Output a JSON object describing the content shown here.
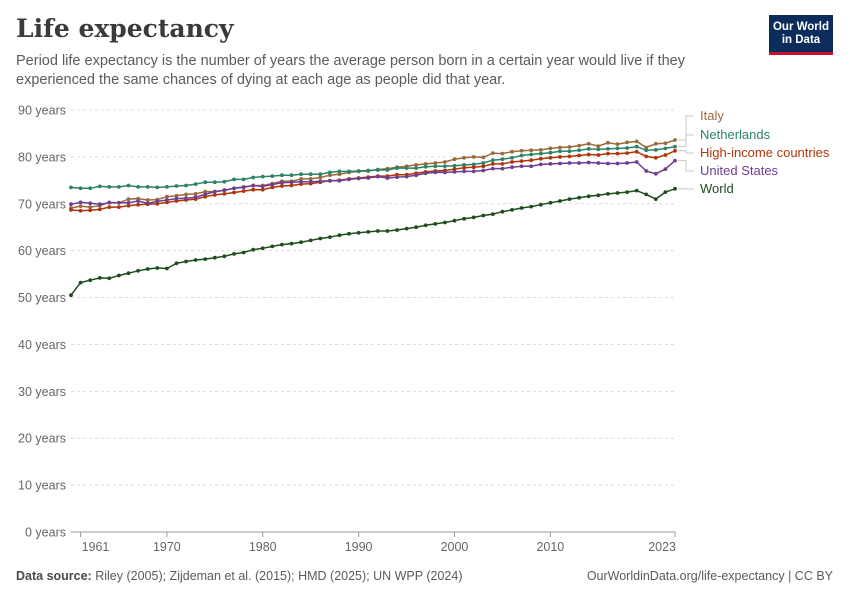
{
  "header": {
    "title": "Life expectancy",
    "subtitle": "Period life expectancy is the number of years the average person born in a certain year would live if they experienced the same chances of dying at each age as people did that year.",
    "logo_line1": "Our World",
    "logo_line2": "in Data"
  },
  "footer": {
    "source_label": "Data source:",
    "source_text": "Riley (2005); Zijdeman et al. (2015); HMD (2025); UN WPP (2024)",
    "link_text": "OurWorldinData.org/life-expectancy",
    "license_text": "| CC BY"
  },
  "chart_data": {
    "type": "line",
    "title": "Life expectancy",
    "xlim": [
      1960,
      2023
    ],
    "ylim": [
      0,
      90
    ],
    "x_ticks": [
      {
        "value": 1961,
        "label": "1961"
      },
      {
        "value": 1970,
        "label": "1970"
      },
      {
        "value": 1980,
        "label": "1980"
      },
      {
        "value": 1990,
        "label": "1990"
      },
      {
        "value": 2000,
        "label": "2000"
      },
      {
        "value": 2010,
        "label": "2010"
      },
      {
        "value": 2023,
        "label": "2023"
      }
    ],
    "y_ticks": [
      {
        "value": 0,
        "label": "0 years"
      },
      {
        "value": 10,
        "label": "10 years"
      },
      {
        "value": 20,
        "label": "20 years"
      },
      {
        "value": 30,
        "label": "30 years"
      },
      {
        "value": 40,
        "label": "40 years"
      },
      {
        "value": 50,
        "label": "50 years"
      },
      {
        "value": 60,
        "label": "60 years"
      },
      {
        "value": 70,
        "label": "70 years"
      },
      {
        "value": 80,
        "label": "80 years"
      },
      {
        "value": 90,
        "label": "90 years"
      }
    ],
    "grid": true,
    "legend": "right",
    "x": [
      1960,
      1961,
      1962,
      1963,
      1964,
      1965,
      1966,
      1967,
      1968,
      1969,
      1970,
      1971,
      1972,
      1973,
      1974,
      1975,
      1976,
      1977,
      1978,
      1979,
      1980,
      1981,
      1982,
      1983,
      1984,
      1985,
      1986,
      1987,
      1988,
      1989,
      1990,
      1991,
      1992,
      1993,
      1994,
      1995,
      1996,
      1997,
      1998,
      1999,
      2000,
      2001,
      2002,
      2003,
      2004,
      2005,
      2006,
      2007,
      2008,
      2009,
      2010,
      2011,
      2012,
      2013,
      2014,
      2015,
      2016,
      2017,
      2018,
      2019,
      2020,
      2021,
      2022,
      2023
    ],
    "series": [
      {
        "name": "Italy",
        "color": "#9a6b3a",
        "values": [
          69.1,
          69.5,
          69.3,
          69.6,
          70.3,
          70.2,
          71.0,
          71.1,
          70.8,
          70.9,
          71.5,
          71.7,
          72.0,
          72.1,
          72.6,
          72.6,
          72.9,
          73.3,
          73.6,
          73.9,
          73.9,
          74.3,
          74.8,
          74.8,
          75.3,
          75.3,
          75.6,
          76.1,
          76.3,
          76.7,
          76.9,
          77.0,
          77.3,
          77.5,
          77.8,
          78.0,
          78.3,
          78.5,
          78.7,
          78.9,
          79.5,
          79.8,
          80.0,
          79.9,
          80.8,
          80.7,
          81.1,
          81.3,
          81.4,
          81.5,
          81.8,
          82.0,
          82.1,
          82.4,
          82.8,
          82.3,
          83.0,
          82.7,
          83.1,
          83.3,
          82.0,
          82.8,
          82.9,
          83.6
        ]
      },
      {
        "name": "Netherlands",
        "color": "#2b8465",
        "values": [
          73.5,
          73.3,
          73.3,
          73.7,
          73.6,
          73.6,
          73.9,
          73.6,
          73.6,
          73.5,
          73.6,
          73.8,
          73.9,
          74.2,
          74.6,
          74.6,
          74.7,
          75.2,
          75.2,
          75.6,
          75.8,
          75.9,
          76.1,
          76.1,
          76.3,
          76.3,
          76.3,
          76.7,
          76.9,
          76.9,
          77.0,
          77.1,
          77.2,
          77.2,
          77.6,
          77.6,
          77.6,
          77.9,
          78.0,
          78.0,
          78.1,
          78.3,
          78.4,
          78.7,
          79.3,
          79.5,
          79.8,
          80.3,
          80.5,
          80.7,
          80.9,
          81.2,
          81.2,
          81.4,
          81.7,
          81.6,
          81.7,
          81.8,
          81.9,
          82.2,
          81.4,
          81.5,
          81.8,
          82.2
        ]
      },
      {
        "name": "High-income countries",
        "color": "#b13507",
        "values": [
          68.7,
          68.5,
          68.6,
          68.8,
          69.3,
          69.3,
          69.6,
          69.8,
          69.9,
          70.0,
          70.3,
          70.6,
          70.8,
          71.0,
          71.5,
          71.9,
          72.1,
          72.4,
          72.7,
          73.0,
          73.0,
          73.5,
          73.8,
          73.9,
          74.2,
          74.3,
          74.6,
          74.9,
          75.0,
          75.3,
          75.5,
          75.7,
          75.9,
          75.9,
          76.2,
          76.2,
          76.5,
          76.8,
          77.0,
          77.1,
          77.4,
          77.7,
          77.8,
          78.0,
          78.5,
          78.5,
          78.9,
          79.1,
          79.3,
          79.6,
          79.8,
          80.0,
          80.1,
          80.3,
          80.5,
          80.4,
          80.7,
          80.7,
          80.8,
          81.1,
          80.1,
          79.8,
          80.4,
          81.3
        ]
      },
      {
        "name": "United States",
        "color": "#6d3e91",
        "values": [
          69.9,
          70.3,
          70.1,
          69.9,
          70.2,
          70.2,
          70.2,
          70.6,
          70.1,
          70.5,
          70.8,
          71.1,
          71.2,
          71.4,
          72.0,
          72.6,
          72.9,
          73.3,
          73.5,
          73.9,
          73.7,
          74.1,
          74.5,
          74.6,
          74.7,
          74.7,
          74.8,
          74.9,
          74.9,
          75.2,
          75.4,
          75.5,
          75.8,
          75.5,
          75.7,
          75.8,
          76.1,
          76.5,
          76.7,
          76.7,
          76.8,
          76.9,
          76.9,
          77.1,
          77.5,
          77.5,
          77.8,
          78.0,
          78.0,
          78.4,
          78.5,
          78.6,
          78.7,
          78.7,
          78.8,
          78.7,
          78.6,
          78.6,
          78.7,
          78.9,
          77.0,
          76.4,
          77.4,
          79.2
        ]
      },
      {
        "name": "World",
        "color": "#1e4d1e",
        "values": [
          50.5,
          53.2,
          53.7,
          54.2,
          54.1,
          54.7,
          55.2,
          55.7,
          56.1,
          56.3,
          56.2,
          57.3,
          57.7,
          58.0,
          58.2,
          58.5,
          58.8,
          59.3,
          59.6,
          60.2,
          60.5,
          60.9,
          61.3,
          61.5,
          61.8,
          62.2,
          62.6,
          62.9,
          63.3,
          63.6,
          63.8,
          64.0,
          64.2,
          64.2,
          64.4,
          64.7,
          65.0,
          65.4,
          65.7,
          66.0,
          66.4,
          66.8,
          67.1,
          67.5,
          67.8,
          68.3,
          68.7,
          69.1,
          69.4,
          69.8,
          70.2,
          70.6,
          71.0,
          71.3,
          71.6,
          71.8,
          72.1,
          72.3,
          72.5,
          72.8,
          72.0,
          71.0,
          72.5,
          73.2
        ]
      }
    ]
  }
}
